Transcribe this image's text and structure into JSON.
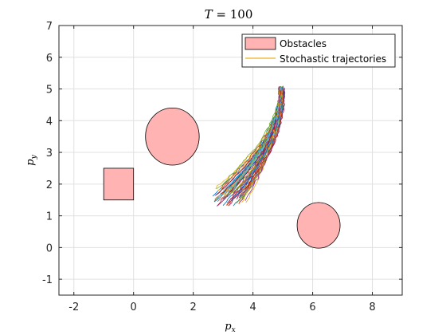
{
  "chart_data": {
    "type": "line",
    "title_math": "T = 100",
    "title_var": "T",
    "title_rest": " = 100",
    "xlabel_var": "p",
    "xlabel_sub": "x",
    "ylabel_var": "p",
    "ylabel_sub": "y",
    "xlim": [
      -2.5,
      9
    ],
    "ylim": [
      -1.5,
      7
    ],
    "xticks": [
      -2,
      0,
      2,
      4,
      6,
      8
    ],
    "yticks": [
      -1,
      0,
      1,
      2,
      3,
      4,
      5,
      6,
      7
    ],
    "grid": true,
    "legend": {
      "placement": "top-right",
      "entries": [
        {
          "label": "Obstacles",
          "kind": "patch",
          "color": "#ffb3b3"
        },
        {
          "label": "Stochastic trajectories",
          "kind": "line",
          "color": "#edb120"
        }
      ]
    },
    "obstacles": [
      {
        "shape": "rectangle",
        "xmin": -1.0,
        "xmax": 0.0,
        "ymin": 1.5,
        "ymax": 2.5,
        "color": "#ffb3b3"
      },
      {
        "shape": "ellipse",
        "cx": 1.3,
        "cy": 3.5,
        "rx": 0.9,
        "ry": 0.9,
        "color": "#ffb3b3"
      },
      {
        "shape": "ellipse",
        "cx": 6.2,
        "cy": 0.7,
        "rx": 0.72,
        "ry": 0.72,
        "color": "#ffb3b3"
      }
    ],
    "trajectories": {
      "count": 60,
      "end": [
        4.95,
        5.05
      ],
      "start_x_range": [
        2.65,
        3.75
      ],
      "start_y_range": [
        1.3,
        1.9
      ],
      "colors": [
        "#0072bd",
        "#d95319",
        "#edb120",
        "#7e2f8e",
        "#77ac30",
        "#4dbeee",
        "#a2142f"
      ]
    }
  }
}
